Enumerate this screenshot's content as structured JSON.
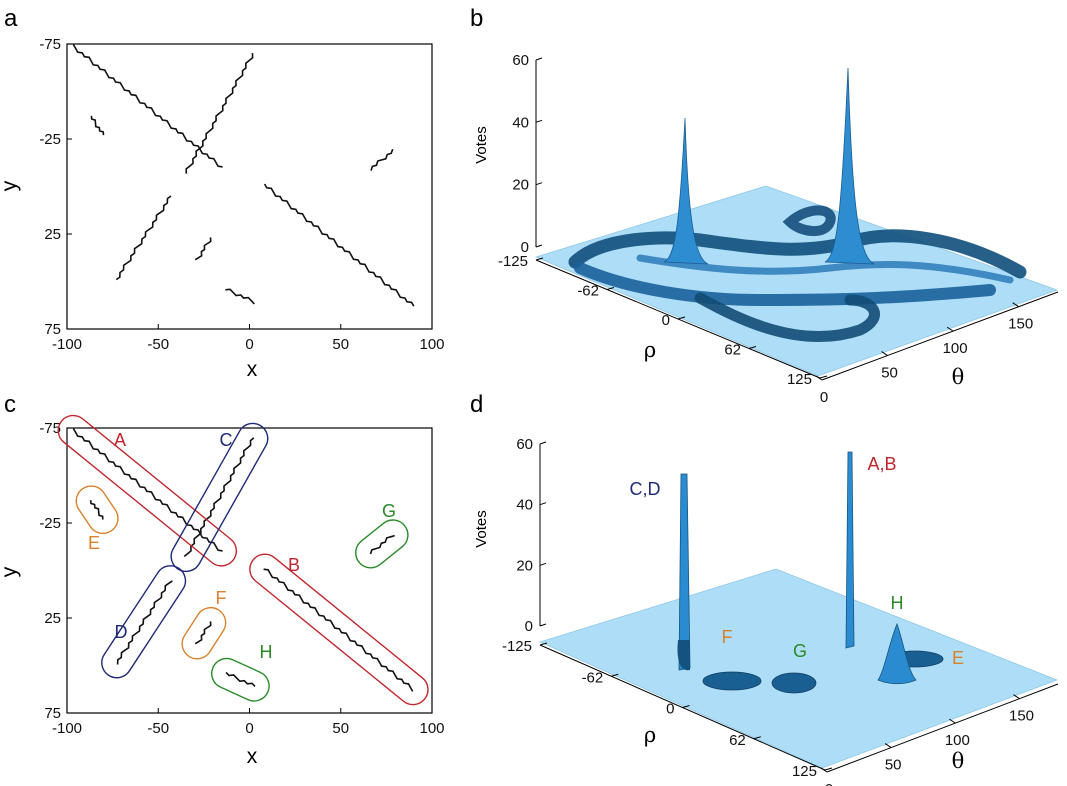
{
  "colors": {
    "red": "#c0262d",
    "navy": "#1f2a78",
    "orange": "#d9822b",
    "green": "#2a8a2a",
    "plane": "#aeddf7",
    "surface": "#1d6ea6"
  },
  "panels": {
    "a": {
      "letter": "a",
      "xlabel": "x",
      "ylabel": "y"
    },
    "b": {
      "letter": "b",
      "zlabel": "Votes",
      "rho_label": "ρ",
      "theta_label": "θ"
    },
    "c": {
      "letter": "c",
      "xlabel": "x",
      "ylabel": "y"
    },
    "d": {
      "letter": "d",
      "zlabel": "Votes",
      "rho_label": "ρ",
      "theta_label": "θ"
    }
  },
  "chart_data": [
    {
      "panel": "a",
      "type": "scatter",
      "title": "",
      "xlabel": "x",
      "ylabel": "y",
      "xlim": [
        -100,
        100
      ],
      "ylim": [
        -75,
        75
      ],
      "y_inverted": true,
      "xticks": [
        "-100",
        "-50",
        "0",
        "50",
        "100"
      ],
      "yticks": [
        "-75",
        "-25",
        "25",
        "75"
      ],
      "segments": [
        {
          "x": [
            -97,
            -15
          ],
          "y": [
            -74,
            -10
          ]
        },
        {
          "x": [
            2,
            -35
          ],
          "y": [
            -70,
            -7
          ]
        },
        {
          "x": [
            -87,
            -80
          ],
          "y": [
            -37,
            -27
          ]
        },
        {
          "x": [
            66,
            79
          ],
          "y": [
            -9,
            -19
          ]
        },
        {
          "x": [
            -73,
            -43
          ],
          "y": [
            49,
            5
          ]
        },
        {
          "x": [
            -29,
            -21
          ],
          "y": [
            39,
            27
          ]
        },
        {
          "x": [
            -13,
            3
          ],
          "y": [
            54,
            61
          ]
        },
        {
          "x": [
            8,
            90
          ],
          "y": [
            -1,
            63
          ]
        }
      ]
    },
    {
      "panel": "b",
      "type": "surface3d",
      "zlabel": "Votes",
      "xlabel": "ρ",
      "ylabel": "θ",
      "zlim": [
        0,
        60
      ],
      "zticks": [
        "0",
        "20",
        "40",
        "60"
      ],
      "rho_ticks": [
        "-125",
        "-62",
        "0",
        "62",
        "125"
      ],
      "theta_ticks": [
        "0",
        "50",
        "100",
        "150"
      ],
      "peaks": [
        {
          "rho": -35,
          "theta": 140,
          "votes": 44
        },
        {
          "rho": -20,
          "theta": 55,
          "votes": 58
        }
      ]
    },
    {
      "panel": "c",
      "type": "scatter",
      "xlabel": "x",
      "ylabel": "y",
      "xlim": [
        -100,
        100
      ],
      "ylim": [
        -75,
        75
      ],
      "y_inverted": true,
      "xticks": [
        "-100",
        "-50",
        "0",
        "50",
        "100"
      ],
      "yticks": [
        "-75",
        "-25",
        "25",
        "75"
      ],
      "clusters": [
        {
          "label": "A",
          "color": "red",
          "x": [
            -97,
            -15
          ],
          "y": [
            -74,
            -10
          ]
        },
        {
          "label": "B",
          "color": "red",
          "x": [
            8,
            90
          ],
          "y": [
            -1,
            63
          ]
        },
        {
          "label": "C",
          "color": "navy",
          "x": [
            2,
            -35
          ],
          "y": [
            -70,
            -7
          ]
        },
        {
          "label": "D",
          "color": "navy",
          "x": [
            -73,
            -43
          ],
          "y": [
            49,
            5
          ]
        },
        {
          "label": "E",
          "color": "orange",
          "x": [
            -87,
            -80
          ],
          "y": [
            -37,
            -27
          ]
        },
        {
          "label": "F",
          "color": "orange",
          "x": [
            -29,
            -21
          ],
          "y": [
            39,
            27
          ]
        },
        {
          "label": "G",
          "color": "green",
          "x": [
            66,
            79
          ],
          "y": [
            -9,
            -19
          ]
        },
        {
          "label": "H",
          "color": "green",
          "x": [
            -13,
            3
          ],
          "y": [
            54,
            61
          ]
        }
      ]
    },
    {
      "panel": "d",
      "type": "surface3d",
      "zlabel": "Votes",
      "xlabel": "ρ",
      "ylabel": "θ",
      "zlim": [
        0,
        60
      ],
      "zticks": [
        "0",
        "20",
        "40",
        "60"
      ],
      "rho_ticks": [
        "-125",
        "-62",
        "0",
        "62",
        "125"
      ],
      "theta_ticks": [
        "0",
        "50",
        "100",
        "150"
      ],
      "peak_labels": [
        {
          "label": "C,D",
          "color": "navy"
        },
        {
          "label": "A,B",
          "color": "red"
        },
        {
          "label": "F",
          "color": "orange"
        },
        {
          "label": "G",
          "color": "green"
        },
        {
          "label": "H",
          "color": "green"
        },
        {
          "label": "E",
          "color": "orange"
        }
      ]
    }
  ]
}
